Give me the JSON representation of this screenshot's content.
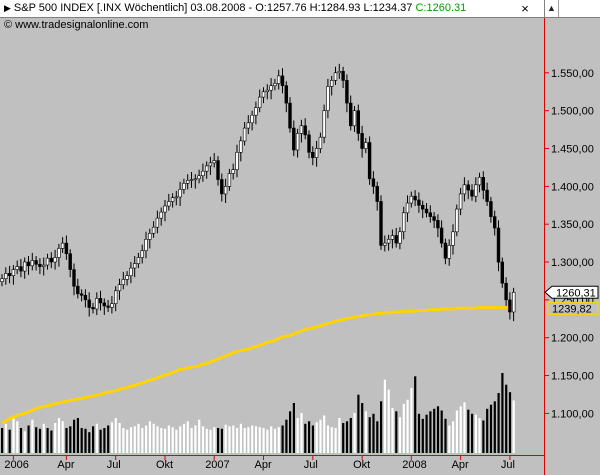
{
  "header": {
    "title_text": "S&P 500 INDEX [.INX  Wöchentlich] 03.08.2008 - O:1257.76 H:1284.93 L:1234.37",
    "close_text": "C:1260.31",
    "close_color": "#00a000",
    "copyright": "© www.tradesignalonline.com"
  },
  "window": {
    "close_glyph": "×",
    "scroll_up_glyph": "▲"
  },
  "colors": {
    "background": "#c0c0c0",
    "up_candle": "#ffffff",
    "down_candle": "#000000",
    "moving_average": "#ffd400",
    "axis_line": "#e00000"
  },
  "chart_data": {
    "type": "candlestick",
    "title": "S&P 500 INDEX [.INX  Wöchentlich]",
    "ylim": [
      1045,
      1600
    ],
    "y_ticks": [
      "1.550,00",
      "1.500,00",
      "1.450,00",
      "1.400,00",
      "1.350,00",
      "1.300,00",
      "1.250,00",
      "1.200,00",
      "1.150,00",
      "1.100,00"
    ],
    "y_tick_values": [
      1550,
      1500,
      1450,
      1400,
      1350,
      1300,
      1250,
      1200,
      1150,
      1100
    ],
    "x_ticks": [
      "2006",
      "Apr",
      "Jul",
      "Okt",
      "2007",
      "Apr",
      "Jul",
      "Okt",
      "2008",
      "Apr",
      "Jul"
    ],
    "x_tick_index": [
      3,
      17,
      30,
      43,
      56,
      69,
      82,
      95,
      108,
      121,
      134
    ],
    "last_close_label": "1260,31",
    "moving_average_label": "1239,82",
    "close": [
      1278,
      1285,
      1282,
      1290,
      1294,
      1288,
      1300,
      1295,
      1302,
      1297,
      1294,
      1296,
      1305,
      1300,
      1306,
      1318,
      1325,
      1311,
      1290,
      1268,
      1258,
      1256,
      1250,
      1240,
      1238,
      1252,
      1246,
      1242,
      1240,
      1245,
      1262,
      1270,
      1277,
      1282,
      1292,
      1298,
      1306,
      1315,
      1330,
      1338,
      1346,
      1358,
      1366,
      1374,
      1380,
      1385,
      1386,
      1396,
      1404,
      1408,
      1409,
      1410,
      1414,
      1420,
      1427,
      1431,
      1434,
      1409,
      1390,
      1400,
      1417,
      1422,
      1445,
      1460,
      1477,
      1484,
      1494,
      1504,
      1518,
      1525,
      1527,
      1533,
      1536,
      1546,
      1533,
      1510,
      1477,
      1448,
      1470,
      1480,
      1468,
      1445,
      1438,
      1450,
      1465,
      1500,
      1532,
      1540,
      1550,
      1552,
      1540,
      1510,
      1480,
      1500,
      1470,
      1450,
      1458,
      1410,
      1400,
      1380,
      1322,
      1325,
      1330,
      1335,
      1325,
      1340,
      1365,
      1378,
      1387,
      1382,
      1375,
      1370,
      1365,
      1360,
      1355,
      1345,
      1325,
      1305,
      1322,
      1340,
      1370,
      1390,
      1402,
      1395,
      1387,
      1402,
      1412,
      1395,
      1380,
      1360,
      1345,
      1300,
      1272,
      1250,
      1234,
      1260
    ],
    "volume_ylim": [
      0,
      1200
    ],
    "volume": [
      300,
      350,
      280,
      420,
      380,
      300,
      260,
      330,
      400,
      310,
      290,
      350,
      300,
      270,
      360,
      420,
      380,
      300,
      320,
      400,
      420,
      300,
      290,
      250,
      320,
      350,
      280,
      300,
      330,
      370,
      420,
      360,
      300,
      280,
      310,
      320,
      350,
      300,
      330,
      380,
      350,
      320,
      300,
      290,
      330,
      310,
      280,
      320,
      350,
      380,
      300,
      330,
      400,
      320,
      290,
      280,
      310,
      300,
      290,
      340,
      320,
      330,
      300,
      350,
      300,
      310,
      330,
      320,
      310,
      300,
      280,
      320,
      290,
      310,
      330,
      400,
      500,
      600,
      420,
      480,
      350,
      380,
      330,
      370,
      400,
      450,
      330,
      310,
      300,
      420,
      360,
      380,
      420,
      480,
      700,
      600,
      500,
      430,
      470,
      380,
      620,
      880,
      760,
      540,
      500,
      430,
      590,
      640,
      780,
      920,
      470,
      410,
      460,
      500,
      530,
      560,
      510,
      410,
      330,
      380,
      510,
      560,
      610,
      520,
      470,
      460,
      420,
      390,
      530,
      580,
      620,
      720,
      960,
      820,
      730,
      630
    ],
    "volume_up": [
      false,
      true,
      false,
      true,
      true,
      false,
      true,
      false,
      true,
      false,
      false,
      true,
      false,
      false,
      true,
      true,
      true,
      false,
      false,
      false,
      false,
      false,
      false,
      false,
      false,
      true,
      false,
      false,
      false,
      true,
      true,
      true,
      true,
      true,
      true,
      true,
      true,
      true,
      true,
      true,
      true,
      true,
      true,
      true,
      true,
      true,
      true,
      true,
      true,
      true,
      true,
      true,
      true,
      true,
      true,
      true,
      true,
      false,
      false,
      true,
      true,
      true,
      true,
      true,
      true,
      true,
      true,
      true,
      true,
      true,
      true,
      true,
      true,
      true,
      false,
      false,
      false,
      false,
      true,
      true,
      false,
      false,
      false,
      true,
      true,
      true,
      true,
      true,
      true,
      true,
      false,
      false,
      false,
      true,
      false,
      false,
      true,
      false,
      false,
      false,
      false,
      true,
      true,
      true,
      false,
      true,
      true,
      true,
      true,
      false,
      false,
      false,
      false,
      false,
      false,
      false,
      false,
      false,
      true,
      true,
      true,
      true,
      true,
      false,
      false,
      true,
      true,
      false,
      false,
      false,
      false,
      false,
      false,
      false,
      false,
      true
    ],
    "moving_average": [
      1087,
      1090,
      1093,
      1095,
      1097,
      1099,
      1100,
      1102,
      1104,
      1106,
      1108,
      1109,
      1110,
      1111,
      1113,
      1114,
      1115,
      1116,
      1117,
      1118,
      1119,
      1120,
      1121,
      1122,
      1123,
      1124,
      1125,
      1127,
      1128,
      1129,
      1130,
      1132,
      1133,
      1134,
      1136,
      1137,
      1139,
      1140,
      1142,
      1144,
      1145,
      1147,
      1149,
      1151,
      1152,
      1154,
      1156,
      1158,
      1159,
      1160,
      1161,
      1162,
      1163,
      1165,
      1166,
      1168,
      1170,
      1172,
      1174,
      1176,
      1178,
      1180,
      1182,
      1183,
      1184,
      1185,
      1187,
      1188,
      1190,
      1192,
      1194,
      1195,
      1197,
      1199,
      1201,
      1202,
      1203,
      1205,
      1207,
      1209,
      1211,
      1212,
      1213,
      1214,
      1216,
      1217,
      1219,
      1220,
      1222,
      1223,
      1224,
      1225,
      1226,
      1227,
      1228,
      1229,
      1230,
      1230,
      1231,
      1232,
      1232,
      1233,
      1233,
      1234,
      1234,
      1234,
      1235,
      1235,
      1235,
      1235,
      1236,
      1236,
      1236,
      1237,
      1237,
      1237,
      1238,
      1238,
      1238,
      1238,
      1239,
      1239,
      1239,
      1239,
      1239,
      1239,
      1240,
      1240,
      1240,
      1240,
      1240,
      1240,
      1240,
      1240,
      1240,
      1240
    ]
  }
}
